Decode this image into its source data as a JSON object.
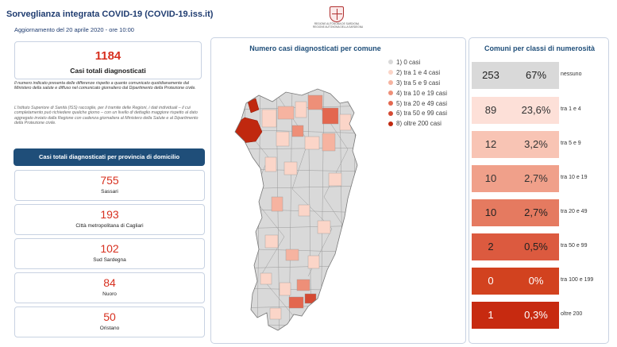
{
  "header": {
    "title": "Sorveglianza integrata COVID-19 (COVID-19.iss.it)",
    "update": "Aggiornamento del 20 aprile 2020 - ore 10:00",
    "emblem_line1": "REGIONE AUTÒNOMA DE SARDIGNA",
    "emblem_line2": "REGIONE AUTONOMA DELLA SARDEGNA"
  },
  "summary": {
    "total_value": "1184",
    "total_label": "Casi totali diagnosticati",
    "note_text": "Il numero indicato presenta delle differenze rispetto a quanto comunicato quotidianamente dal Ministero della salute e diffuso nel comunicato giornaliero dal Dipartimento della Protezione civile.",
    "note_detail": "L'Istituto Superiore di Sanità (ISS) raccoglie, per il tramite delle Regioni, i dati individuali – il cui completamento può richiedere qualche giorno – con un livello di dettaglio maggiore rispetto al dato aggregato inviato dalla Regione con cadenza giornaliera al Ministero della Salute e al Dipartimento della Protezione civile."
  },
  "provinces": {
    "header": "Casi totali diagnosticati per provincia di domicilio",
    "items": [
      {
        "value": "755",
        "name": "Sassari"
      },
      {
        "value": "193",
        "name": "Città metropolitana di Cagliari"
      },
      {
        "value": "102",
        "name": "Sud Sardegna"
      },
      {
        "value": "84",
        "name": "Nuoro"
      },
      {
        "value": "50",
        "name": "Oristano"
      }
    ]
  },
  "map": {
    "title": "Numero casi diagnosticati per comune",
    "legend": [
      {
        "label": "1) 0 casi",
        "color": "#d9d9d9"
      },
      {
        "label": "2) tra 1 e 4 casi",
        "color": "#fbd5c8"
      },
      {
        "label": "3) tra 5 e 9 casi",
        "color": "#f6b3a0"
      },
      {
        "label": "4) tra 10 e 19 casi",
        "color": "#ee8f78"
      },
      {
        "label": "5) tra 20 e 49 casi",
        "color": "#e3674f"
      },
      {
        "label": "6) tra 50 e 99 casi",
        "color": "#d44a33"
      },
      {
        "label": "8) oltre 200 casi",
        "color": "#c0280f"
      }
    ]
  },
  "classes": {
    "title": "Comuni per classi di numerosità",
    "rows": [
      {
        "count": "253",
        "percent": "67%",
        "label": "nessuno",
        "color": "#d9d9d9",
        "text_color": "#222222"
      },
      {
        "count": "89",
        "percent": "23,6%",
        "label": "tra 1 e 4",
        "color": "#fde0d8",
        "text_color": "#333333"
      },
      {
        "count": "12",
        "percent": "3,2%",
        "label": "tra 5 e 9",
        "color": "#f8c4b4",
        "text_color": "#333333"
      },
      {
        "count": "10",
        "percent": "2,7%",
        "label": "tra 10 e 19",
        "color": "#f0a08a",
        "text_color": "#333333"
      },
      {
        "count": "10",
        "percent": "2,7%",
        "label": "tra 20 e 49",
        "color": "#e57a60",
        "text_color": "#222222"
      },
      {
        "count": "2",
        "percent": "0,5%",
        "label": "tra 50 e 99",
        "color": "#dc5a3f",
        "text_color": "#222222"
      },
      {
        "count": "0",
        "percent": "0%",
        "label": "tra 100 e 199",
        "color": "#d2421f",
        "text_color": "#ffffff"
      },
      {
        "count": "1",
        "percent": "0,3%",
        "label": "oltre 200",
        "color": "#c72a10",
        "text_color": "#ffffff"
      }
    ]
  }
}
